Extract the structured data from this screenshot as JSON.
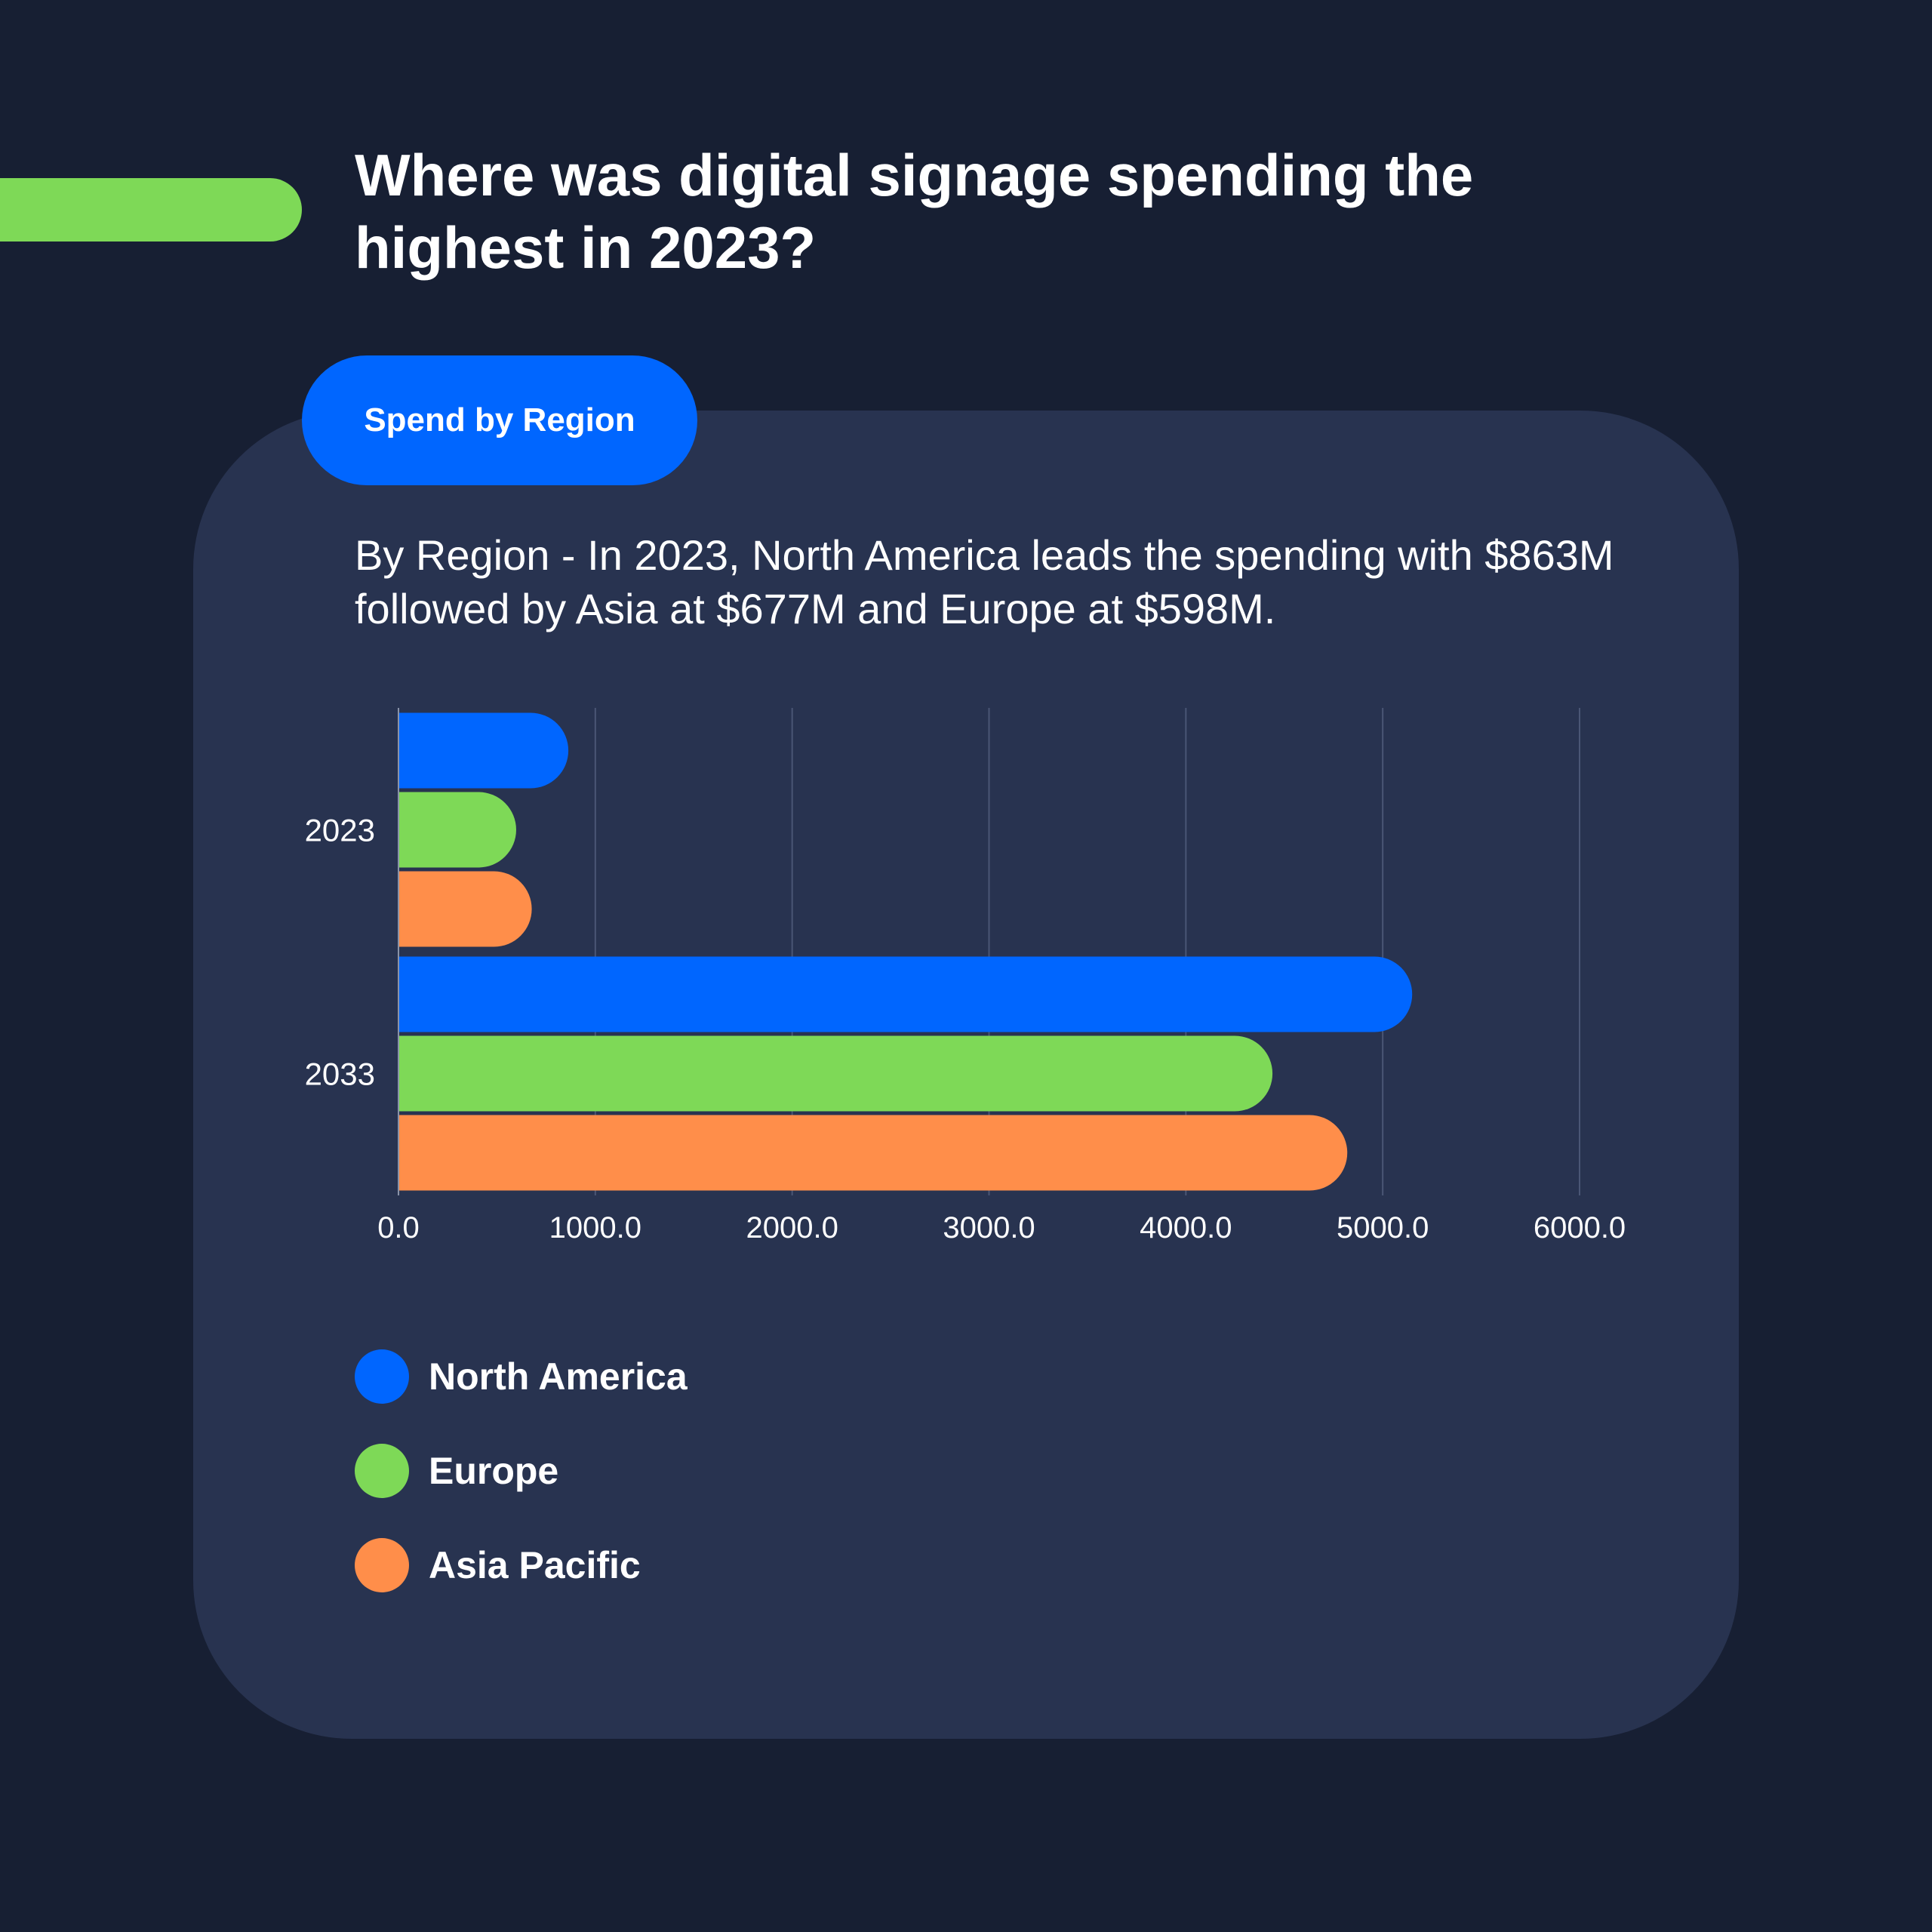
{
  "page": {
    "title": "Where was digital signage spending the highest in 2023?",
    "tag": "Spend by Region",
    "description": "By Region - In 2023, North America leads the spending with $863M followed by Asia at $677M and Europe at $598M."
  },
  "colors": {
    "background": "#171f33",
    "card": "#283350",
    "accent_green": "#7ed957",
    "tag_blue": "#0066ff"
  },
  "chart_data": {
    "type": "bar",
    "orientation": "horizontal",
    "categories": [
      "2023",
      "2033"
    ],
    "series": [
      {
        "name": "North America",
        "color": "#0066ff",
        "values": [
          863,
          5150
        ]
      },
      {
        "name": "Europe",
        "color": "#7ed957",
        "values": [
          598,
          4440
        ]
      },
      {
        "name": "Asia Pacific",
        "color": "#ff8e4a",
        "values": [
          677,
          4820
        ]
      }
    ],
    "xlim": [
      0,
      6000
    ],
    "x_ticks": [
      "0.0",
      "1000.0",
      "2000.0",
      "3000.0",
      "4000.0",
      "5000.0",
      "6000.0"
    ],
    "grid": "vertical",
    "legend": "bottom-left",
    "title": "",
    "xlabel": "",
    "ylabel": ""
  }
}
